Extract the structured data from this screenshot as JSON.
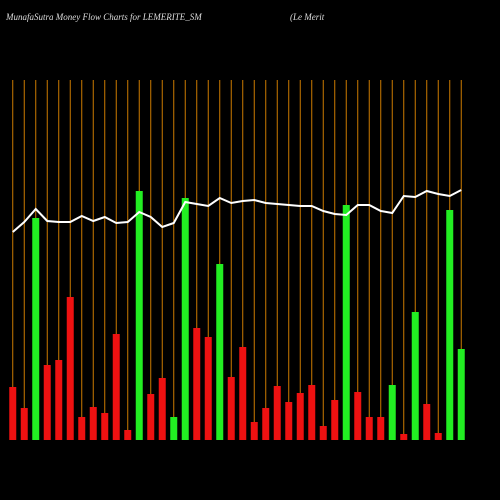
{
  "chart_data": {
    "type": "bar",
    "title": "MunafaSutra  Money Flow  Charts for LEMERITE_SM",
    "subtitle": "(Le   Merit",
    "categories": [
      null,
      null,
      null,
      null,
      null,
      null,
      null,
      null,
      null,
      null,
      null,
      null,
      null,
      null,
      null,
      null,
      null,
      null,
      null,
      null,
      null,
      null,
      null,
      null,
      null,
      null,
      null,
      null,
      null,
      null,
      null,
      null,
      null,
      null,
      null,
      null,
      null,
      null,
      null,
      null
    ],
    "values": [
      53,
      32,
      222,
      75,
      80,
      143,
      23,
      33,
      27,
      106,
      10,
      249,
      46,
      62,
      23,
      242,
      112,
      103,
      176,
      63,
      93,
      18,
      32,
      54,
      38,
      47,
      55,
      14,
      40,
      235,
      48,
      23,
      23,
      55,
      6,
      128,
      36,
      7,
      230,
      91
    ],
    "bar_colors": [
      "#ee1111",
      "#ee1111",
      "#22ee22",
      "#ee1111",
      "#ee1111",
      "#ee1111",
      "#ee1111",
      "#ee1111",
      "#ee1111",
      "#ee1111",
      "#ee1111",
      "#22ee22",
      "#ee1111",
      "#ee1111",
      "#22ee22",
      "#22ee22",
      "#ee1111",
      "#ee1111",
      "#22ee22",
      "#ee1111",
      "#ee1111",
      "#ee1111",
      "#ee1111",
      "#ee1111",
      "#ee1111",
      "#ee1111",
      "#ee1111",
      "#ee1111",
      "#ee1111",
      "#22ee22",
      "#ee1111",
      "#ee1111",
      "#ee1111",
      "#22ee22",
      "#ee1111",
      "#22ee22",
      "#ee1111",
      "#ee1111",
      "#22ee22",
      "#22ee22"
    ],
    "line_values": [
      208,
      218,
      231,
      219,
      218,
      218,
      224,
      219,
      223,
      217,
      218,
      228,
      223,
      213,
      217,
      238,
      236,
      234,
      242,
      237,
      239,
      240,
      237,
      236,
      235,
      234,
      234,
      229,
      226,
      225,
      235,
      235,
      229,
      227,
      244,
      243,
      249,
      246,
      244,
      250
    ],
    "line_color": "#ffffff",
    "grid_color": "#cc7a00",
    "ylim": [
      0,
      360
    ]
  }
}
